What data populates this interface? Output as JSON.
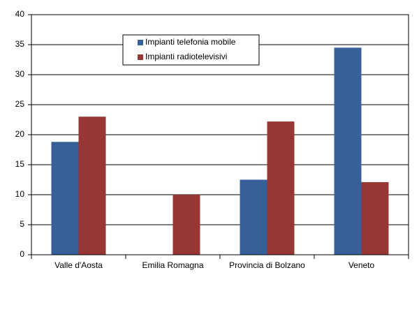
{
  "chart_data": {
    "type": "bar",
    "categories": [
      "Valle d'Aosta",
      "Emilia Romagna",
      "Provincia di Bolzano",
      "Veneto"
    ],
    "series": [
      {
        "name": "Impianti telefonia mobile",
        "color": "#36609a",
        "values": [
          18.8,
          0,
          12.5,
          34.5
        ]
      },
      {
        "name": "Impianti radiotelevisivi",
        "color": "#973735",
        "values": [
          23,
          10,
          22.2,
          12.1
        ]
      }
    ],
    "ylim": [
      0,
      40
    ],
    "yticks": [
      0,
      5,
      10,
      15,
      20,
      25,
      30,
      35,
      40
    ],
    "grid": true,
    "legend": "top"
  }
}
